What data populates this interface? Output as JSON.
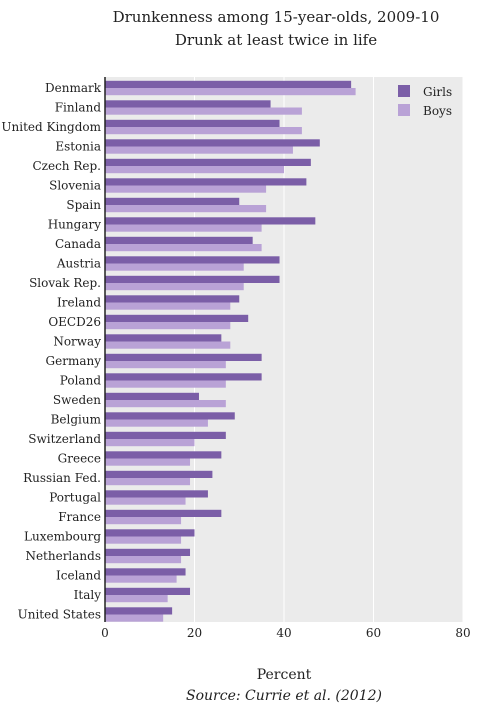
{
  "chart_data": {
    "type": "bar",
    "orientation": "horizontal",
    "title": "Drunkenness among 15-year-olds, 2009-10",
    "subtitle": "Drunk at least twice in life",
    "xlabel": "Percent",
    "source": "Source: Currie et al. (2012)",
    "xlim": [
      0,
      80
    ],
    "xticks": [
      "0",
      "20",
      "40",
      "60",
      "80"
    ],
    "grid": true,
    "legend_position": "top-right",
    "colors": {
      "girls": "#7b5ea7",
      "boys": "#b9a2d6",
      "plot_bg": "#ebebeb",
      "grid": "#ffffff"
    },
    "categories": [
      "Denmark",
      "Finland",
      "United Kingdom",
      "Estonia",
      "Czech Rep.",
      "Slovenia",
      "Spain",
      "Hungary",
      "Canada",
      "Austria",
      "Slovak Rep.",
      "Ireland",
      "OECD26",
      "Norway",
      "Germany",
      "Poland",
      "Sweden",
      "Belgium",
      "Switzerland",
      "Greece",
      "Russian Fed.",
      "Portugal",
      "France",
      "Luxembourg",
      "Netherlands",
      "Iceland",
      "Italy",
      "United States"
    ],
    "series": [
      {
        "name": "Girls",
        "values": [
          55,
          37,
          39,
          48,
          46,
          45,
          30,
          47,
          33,
          39,
          39,
          30,
          32,
          26,
          35,
          35,
          21,
          29,
          27,
          26,
          24,
          23,
          26,
          20,
          19,
          18,
          19,
          15
        ]
      },
      {
        "name": "Boys",
        "values": [
          56,
          44,
          44,
          42,
          40,
          36,
          36,
          35,
          35,
          31,
          31,
          28,
          28,
          28,
          27,
          27,
          27,
          23,
          20,
          19,
          19,
          18,
          17,
          17,
          17,
          16,
          14,
          13
        ]
      }
    ]
  }
}
